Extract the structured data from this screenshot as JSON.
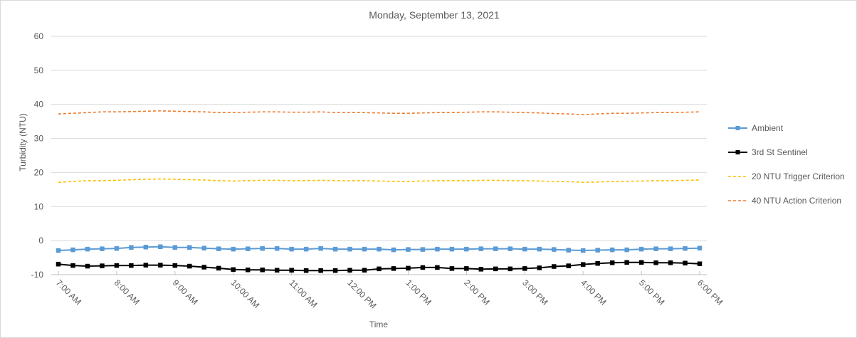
{
  "chart_data": {
    "type": "line",
    "title": "Monday, September 13, 2021",
    "xlabel": "Time",
    "ylabel": "Turbidity (NTU)",
    "ylim": [
      -10,
      60
    ],
    "yticks": [
      -10,
      0,
      10,
      20,
      30,
      40,
      50,
      60
    ],
    "grid": true,
    "legend": "right",
    "x_tick_labels": [
      "7:00 AM",
      "8:00 AM",
      "9:00 AM",
      "10:00 AM",
      "11:00 AM",
      "12:00 PM",
      "1:00 PM",
      "2:00 PM",
      "3:00 PM",
      "4:00 PM",
      "5:00 PM",
      "6:00 PM"
    ],
    "x_start": "7:00 AM",
    "x_interval_minutes": 15,
    "series": [
      {
        "name": "Ambient",
        "color": "#5b9bd5",
        "style": "solid",
        "marker": "square",
        "values": [
          -2.9,
          -2.7,
          -2.5,
          -2.4,
          -2.3,
          -2.0,
          -1.9,
          -1.8,
          -2.0,
          -2.0,
          -2.2,
          -2.4,
          -2.5,
          -2.4,
          -2.3,
          -2.3,
          -2.5,
          -2.5,
          -2.3,
          -2.5,
          -2.5,
          -2.5,
          -2.5,
          -2.7,
          -2.6,
          -2.6,
          -2.5,
          -2.5,
          -2.5,
          -2.4,
          -2.4,
          -2.4,
          -2.5,
          -2.5,
          -2.6,
          -2.8,
          -2.9,
          -2.8,
          -2.7,
          -2.7,
          -2.5,
          -2.4,
          -2.4,
          -2.3,
          -2.2
        ]
      },
      {
        "name": "3rd St Sentinel",
        "color": "#000000",
        "style": "solid",
        "marker": "square",
        "values": [
          -6.9,
          -7.3,
          -7.5,
          -7.4,
          -7.3,
          -7.3,
          -7.2,
          -7.2,
          -7.3,
          -7.5,
          -7.8,
          -8.1,
          -8.5,
          -8.6,
          -8.6,
          -8.7,
          -8.7,
          -8.8,
          -8.8,
          -8.8,
          -8.7,
          -8.7,
          -8.3,
          -8.2,
          -8.1,
          -7.9,
          -7.9,
          -8.2,
          -8.2,
          -8.4,
          -8.3,
          -8.3,
          -8.2,
          -8.0,
          -7.6,
          -7.4,
          -7.0,
          -6.7,
          -6.5,
          -6.4,
          -6.4,
          -6.5,
          -6.5,
          -6.6,
          -6.8
        ]
      },
      {
        "name": "20 NTU Trigger Criterion",
        "color": "#ffc000",
        "style": "dashed",
        "marker": "none",
        "values": [
          17.1,
          17.4,
          17.6,
          17.6,
          17.7,
          17.9,
          18.0,
          18.1,
          18.0,
          17.9,
          17.8,
          17.6,
          17.5,
          17.6,
          17.7,
          17.7,
          17.6,
          17.6,
          17.7,
          17.6,
          17.6,
          17.6,
          17.5,
          17.4,
          17.4,
          17.5,
          17.6,
          17.6,
          17.6,
          17.7,
          17.7,
          17.6,
          17.6,
          17.5,
          17.4,
          17.3,
          17.1,
          17.2,
          17.4,
          17.4,
          17.5,
          17.6,
          17.6,
          17.7,
          17.8
        ]
      },
      {
        "name": "40 NTU Action Criterion",
        "color": "#ed7d31",
        "style": "dashed",
        "marker": "none",
        "values": [
          37.2,
          37.4,
          37.6,
          37.8,
          37.8,
          37.9,
          38.0,
          38.1,
          38.0,
          37.9,
          37.8,
          37.6,
          37.6,
          37.7,
          37.8,
          37.8,
          37.7,
          37.7,
          37.8,
          37.6,
          37.6,
          37.6,
          37.5,
          37.4,
          37.4,
          37.5,
          37.6,
          37.6,
          37.7,
          37.8,
          37.8,
          37.7,
          37.6,
          37.5,
          37.3,
          37.2,
          37.0,
          37.2,
          37.4,
          37.4,
          37.5,
          37.6,
          37.6,
          37.7,
          37.8
        ]
      }
    ]
  }
}
